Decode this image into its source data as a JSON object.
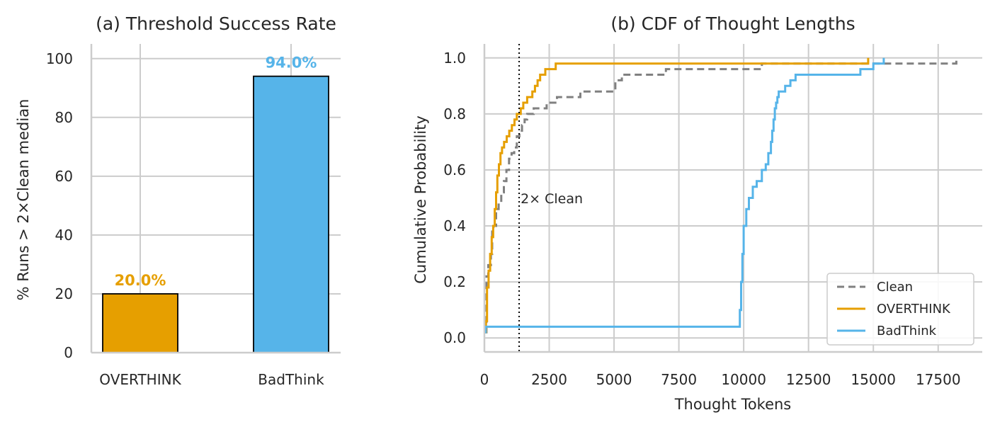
{
  "chart_data": [
    {
      "type": "bar",
      "title": "(a) Threshold Success Rate",
      "xlabel": "",
      "ylabel": "% Runs > 2×Clean median",
      "categories": [
        "OVERTHINK",
        "BadThink"
      ],
      "values": [
        20.0,
        94.0
      ],
      "value_labels": [
        "20.0%",
        "94.0%"
      ],
      "colors": [
        "#E69F00",
        "#56B4E9"
      ],
      "ylim": [
        0,
        105
      ],
      "yticks": [
        0,
        20,
        40,
        60,
        80,
        100
      ],
      "grid": true
    },
    {
      "type": "line",
      "title": "(b) CDF of Thought Lengths",
      "xlabel": "Thought Tokens",
      "ylabel": "Cumulative Probability",
      "xlim": [
        0,
        19200
      ],
      "ylim": [
        -0.05,
        1.05
      ],
      "xticks": [
        0,
        2500,
        5000,
        7500,
        10000,
        12500,
        15000,
        17500
      ],
      "yticks": [
        0.0,
        0.2,
        0.4,
        0.6,
        0.8,
        1.0
      ],
      "ytick_labels": [
        "0.0",
        "0.2",
        "0.4",
        "0.6",
        "0.8",
        "1.0"
      ],
      "grid": true,
      "legend": "bottom-right",
      "annotation": {
        "text": "2× Clean",
        "x": 1340
      },
      "series": [
        {
          "name": "Clean",
          "color": "#808080",
          "style": "dashed",
          "x": [
            0,
            80,
            150,
            250,
            300,
            350,
            450,
            550,
            650,
            750,
            850,
            950,
            1050,
            1150,
            1250,
            1350,
            1450,
            1550,
            1650,
            1750,
            1900,
            2100,
            2400,
            2800,
            3200,
            3700,
            4400,
            5050,
            5300,
            5600,
            6200,
            7000,
            7600,
            9200,
            10000,
            10600,
            10700,
            14000,
            16000,
            18200
          ],
          "y": [
            0.02,
            0.22,
            0.26,
            0.3,
            0.38,
            0.4,
            0.46,
            0.48,
            0.52,
            0.56,
            0.6,
            0.64,
            0.66,
            0.68,
            0.72,
            0.74,
            0.76,
            0.78,
            0.8,
            0.8,
            0.82,
            0.82,
            0.84,
            0.86,
            0.86,
            0.88,
            0.88,
            0.92,
            0.94,
            0.94,
            0.94,
            0.96,
            0.96,
            0.96,
            0.96,
            0.96,
            0.98,
            0.98,
            0.98,
            1.0
          ]
        },
        {
          "name": "OVERTHINK",
          "color": "#E69F00",
          "style": "solid",
          "x": [
            0,
            60,
            100,
            160,
            220,
            280,
            340,
            400,
            450,
            500,
            560,
            620,
            680,
            760,
            860,
            960,
            1060,
            1160,
            1250,
            1400,
            1500,
            1650,
            1850,
            1950,
            2050,
            2150,
            2250,
            2350,
            2750,
            14800
          ],
          "y": [
            0.02,
            0.06,
            0.18,
            0.24,
            0.3,
            0.36,
            0.4,
            0.46,
            0.52,
            0.58,
            0.62,
            0.66,
            0.68,
            0.7,
            0.72,
            0.74,
            0.76,
            0.78,
            0.8,
            0.82,
            0.84,
            0.86,
            0.88,
            0.9,
            0.92,
            0.94,
            0.94,
            0.96,
            0.98,
            1.0
          ]
        },
        {
          "name": "BadThink",
          "color": "#56B4E9",
          "style": "solid",
          "x": [
            0,
            50,
            9800,
            9850,
            9900,
            9950,
            10000,
            10100,
            10200,
            10350,
            10500,
            10700,
            10850,
            10950,
            11050,
            11100,
            11150,
            11200,
            11250,
            11300,
            11350,
            11400,
            11600,
            11800,
            12000,
            12200,
            13800,
            14500,
            15000,
            15400
          ],
          "y": [
            0.02,
            0.04,
            0.04,
            0.1,
            0.2,
            0.3,
            0.4,
            0.46,
            0.5,
            0.54,
            0.56,
            0.6,
            0.62,
            0.66,
            0.7,
            0.74,
            0.78,
            0.82,
            0.84,
            0.86,
            0.88,
            0.88,
            0.9,
            0.92,
            0.94,
            0.94,
            0.94,
            0.96,
            0.98,
            1.0
          ]
        }
      ]
    }
  ]
}
